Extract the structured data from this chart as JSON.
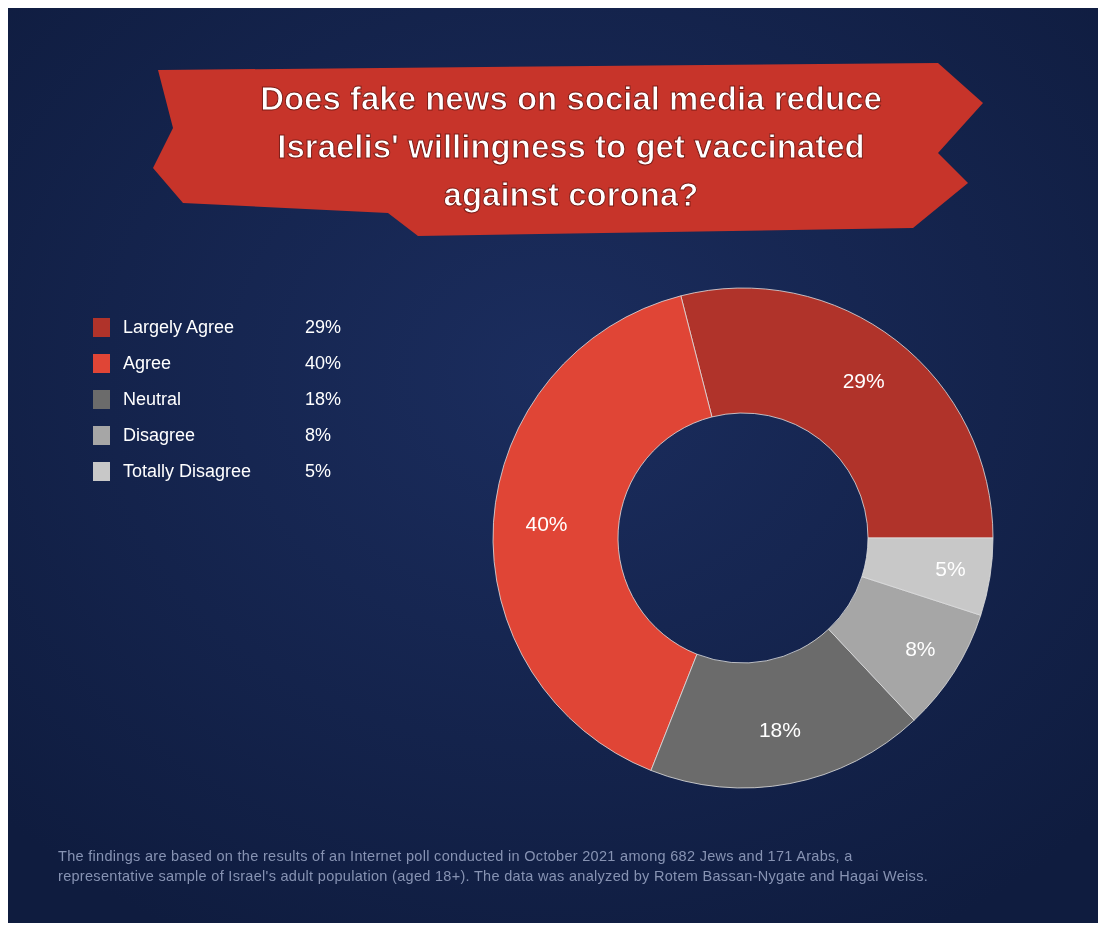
{
  "chart_data": {
    "type": "donut",
    "title": "Does fake news on social media reduce Israelis' willingness to get vaccinated against corona?",
    "categories": [
      "Largely Agree",
      "Agree",
      "Neutral",
      "Disagree",
      "Totally Disagree"
    ],
    "values": [
      29,
      40,
      18,
      8,
      5
    ],
    "colors": [
      "#b0332a",
      "#e04536",
      "#6b6b6b",
      "#a6a6a6",
      "#c8c8c8"
    ],
    "value_labels": [
      "29%",
      "40%",
      "18%",
      "8%",
      "5%"
    ],
    "legend": "top left",
    "annotations": [
      "The findings are based on the results of an Internet poll conducted in October 2021 among 682 Jews and 171 Arabs, a representative sample of Israel's adult population (aged 18+). The data was analyzed by Rotem Bassan-Nygate and Hagai Weiss."
    ]
  }
}
